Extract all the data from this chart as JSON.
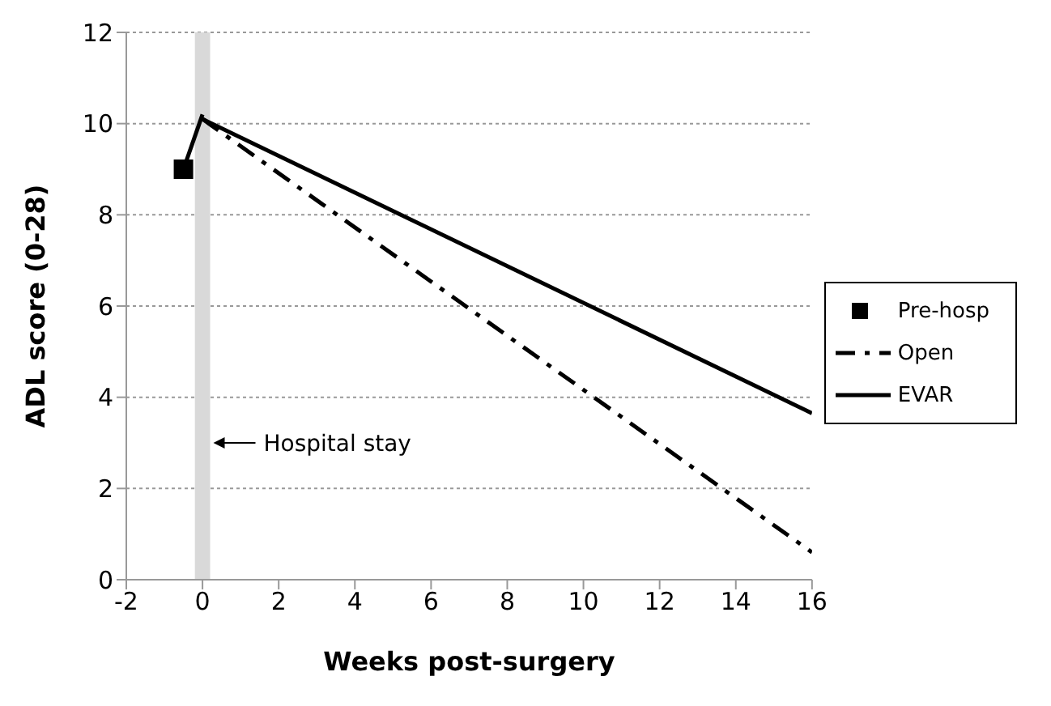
{
  "chart_data": {
    "type": "line",
    "xlabel": "Weeks post-surgery",
    "ylabel": "ADL score (0-28)",
    "xlim": [
      -2,
      16
    ],
    "xticks": [
      -2,
      0,
      2,
      4,
      6,
      8,
      10,
      12,
      14,
      16
    ],
    "ylim": [
      0,
      12
    ],
    "yticks": [
      0,
      2,
      4,
      6,
      8,
      10,
      12
    ],
    "grid": "y",
    "legend": "right",
    "series": [
      {
        "name": "Pre-hosp",
        "type": "scatter",
        "marker": "square",
        "color": "#000000",
        "x": [
          -0.5
        ],
        "values": [
          9
        ]
      },
      {
        "color": "#000000",
        "line_style": "solid",
        "x": [
          -0.5,
          0
        ],
        "values": [
          9,
          10.2
        ]
      },
      {
        "name": "Open",
        "color": "#000000",
        "line_style": "dashed",
        "x": [
          0,
          16
        ],
        "values": [
          10.1,
          0.6
        ]
      },
      {
        "name": "EVAR",
        "color": "#000000",
        "line_style": "solid",
        "x": [
          0,
          16
        ],
        "values": [
          10.1,
          3.65
        ]
      }
    ],
    "bands": [
      {
        "axis": "x",
        "from": -0.2,
        "to": 0.2,
        "color": "#d9d9d9"
      }
    ],
    "annotations": [
      {
        "text": "Hospital stay",
        "x": 0.2,
        "y": 3
      }
    ]
  }
}
